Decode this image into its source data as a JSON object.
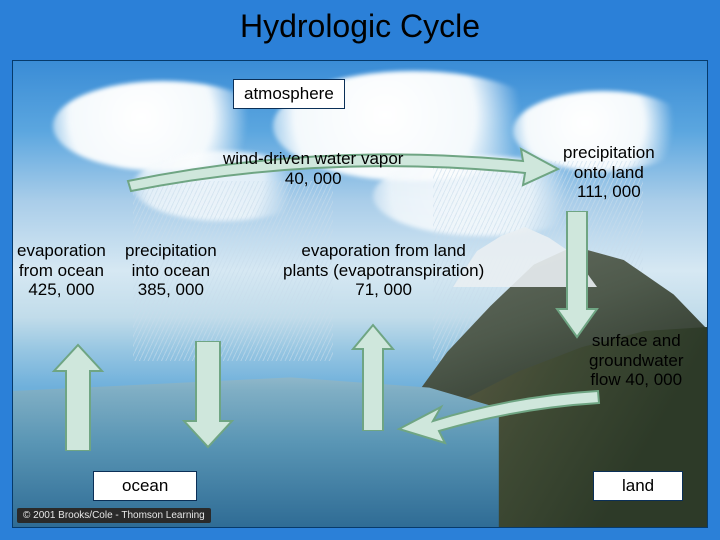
{
  "title": "Hydrologic Cycle",
  "labels": {
    "atmosphere": "atmosphere",
    "wind_vapor": "wind-driven water vapor\n40, 000",
    "precip_land": "precipitation\nonto land\n111, 000",
    "evap_ocean": "evaporation\nfrom ocean\n425, 000",
    "precip_ocean": "precipitation\ninto ocean\n385, 000",
    "evap_land": "evaporation from land\nplants (evapotranspiration)\n71, 000",
    "flow": "surface and\ngroundwater\nflow 40, 000",
    "ocean": "ocean",
    "land": "land"
  },
  "credit": "© 2001 Brooks/Cole - Thomson Learning",
  "style": {
    "arrow_fill": "#cfe7dc",
    "arrow_stroke": "#6fa583",
    "box_border": "#0a2f57",
    "bg_blue": "#2b80d8",
    "title_color": "#000000",
    "label_fontsize": 17,
    "title_fontsize": 32
  },
  "fluxes_km3_per_year": {
    "wind_driven_vapor": 40000,
    "precipitation_onto_land": 111000,
    "evaporation_from_ocean": 425000,
    "precipitation_into_ocean": 385000,
    "evapotranspiration_from_land": 71000,
    "surface_groundwater_flow": 40000
  }
}
